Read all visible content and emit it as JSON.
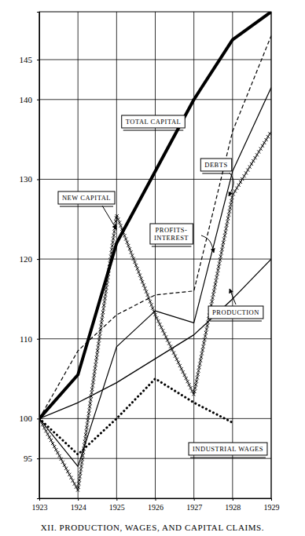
{
  "chart_data": {
    "type": "line",
    "title": "XII. PRODUCTION, WAGES, AND CAPITAL CLAIMS.",
    "x": [
      1923,
      1924,
      1925,
      1926,
      1927,
      1928,
      1929
    ],
    "xlim": [
      1923,
      1929
    ],
    "xticks": [
      1923,
      1924,
      1925,
      1926,
      1927,
      1928,
      1929
    ],
    "ylim": [
      90,
      151
    ],
    "yticks": [
      95,
      100,
      110,
      120,
      130,
      140,
      145
    ],
    "grid": true,
    "series": [
      {
        "name": "TOTAL CAPITAL",
        "color": "#000000",
        "line_style": "solid",
        "values": [
          100,
          105.5,
          122,
          131,
          140,
          147.5,
          151
        ]
      },
      {
        "name": "DEBTS",
        "color": "#000000",
        "line_style": "dashed",
        "values": [
          100,
          108.5,
          113,
          115.5,
          116,
          136,
          148
        ]
      },
      {
        "name": "PROFITS-INTEREST",
        "color": "#000000",
        "line_style": "solid",
        "values": [
          100,
          94,
          109,
          113.5,
          112,
          131,
          141.5
        ]
      },
      {
        "name": "PRODUCTION",
        "color": "#000000",
        "line_style": "solid",
        "values": [
          100,
          102,
          104.5,
          107.5,
          110.5,
          115,
          120
        ]
      },
      {
        "name": "NEW CAPITAL",
        "color": "#000000",
        "line_style": "solid",
        "marker": "x",
        "values": [
          100,
          91,
          125.5,
          113,
          103,
          128,
          136
        ]
      },
      {
        "name": "INDUSTRIAL WAGES",
        "color": "#000000",
        "line_style": "dotted",
        "values": [
          100,
          95.5,
          100,
          105,
          102,
          99.5,
          null
        ]
      }
    ]
  }
}
